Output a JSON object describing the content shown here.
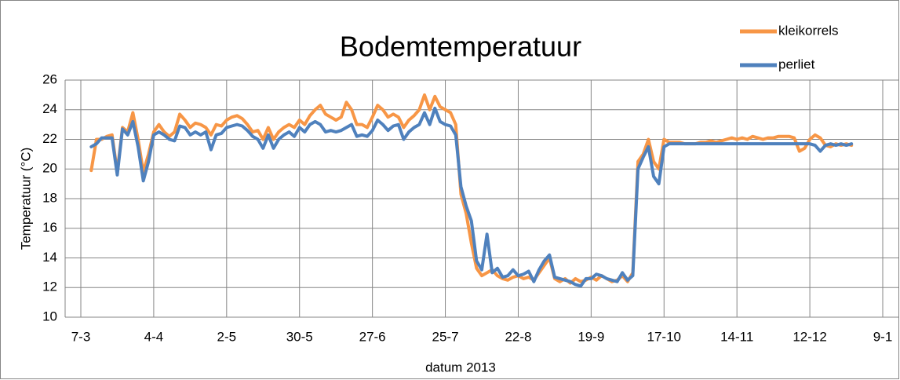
{
  "chart_data": {
    "type": "line",
    "title": "Bodemtemperatuur",
    "x_label": "datum 2013",
    "y_label": "Temperatuur (°C)",
    "x": [
      "7-3",
      "9-3",
      "11-3",
      "13-3",
      "15-3",
      "17-3",
      "19-3",
      "21-3",
      "23-3",
      "25-3",
      "27-3",
      "29-3",
      "31-3",
      "2-4",
      "4-4",
      "6-4",
      "8-4",
      "10-4",
      "12-4",
      "14-4",
      "16-4",
      "18-4",
      "20-4",
      "22-4",
      "24-4",
      "26-4",
      "28-4",
      "30-4",
      "2-5",
      "4-5",
      "6-5",
      "8-5",
      "10-5",
      "12-5",
      "14-5",
      "16-5",
      "18-5",
      "20-5",
      "22-5",
      "24-5",
      "26-5",
      "28-5",
      "30-5",
      "1-6",
      "3-6",
      "5-6",
      "7-6",
      "9-6",
      "11-6",
      "13-6",
      "15-6",
      "17-6",
      "19-6",
      "21-6",
      "23-6",
      "25-6",
      "27-6",
      "29-6",
      "1-7",
      "3-7",
      "5-7",
      "7-7",
      "9-7",
      "11-7",
      "13-7",
      "15-7",
      "17-7",
      "19-7",
      "21-7",
      "23-7",
      "25-7",
      "27-7",
      "29-7",
      "31-7",
      "2-8",
      "4-8",
      "6-8",
      "8-8",
      "10-8",
      "12-8",
      "14-8",
      "16-8",
      "18-8",
      "20-8",
      "22-8",
      "24-8",
      "26-8",
      "28-8",
      "30-8",
      "1-9",
      "3-9",
      "5-9",
      "7-9",
      "9-9",
      "11-9",
      "13-9",
      "15-9",
      "17-9",
      "19-9",
      "21-9",
      "23-9",
      "25-9",
      "27-9",
      "29-9",
      "1-10",
      "3-10",
      "5-10",
      "7-10",
      "9-10",
      "11-10",
      "13-10",
      "15-10",
      "17-10",
      "19-10",
      "21-10",
      "23-10",
      "25-10",
      "27-10",
      "29-10",
      "31-10",
      "2-11",
      "4-11",
      "6-11",
      "8-11",
      "10-11",
      "12-11",
      "14-11",
      "16-11",
      "18-11",
      "20-11",
      "22-11",
      "24-11",
      "26-11",
      "28-11",
      "30-11",
      "2-12",
      "4-12",
      "6-12",
      "8-12",
      "10-12",
      "12-12",
      "14-12",
      "16-12",
      "18-12",
      "20-12",
      "22-12",
      "24-12",
      "26-12",
      "28-12",
      "30-12",
      "1-1",
      "3-1",
      "5-1",
      "7-1",
      "9-1"
    ],
    "xticks": [
      "7-3",
      "4-4",
      "2-5",
      "30-5",
      "27-6",
      "25-7",
      "22-8",
      "19-9",
      "17-10",
      "14-11",
      "12-12",
      "9-1"
    ],
    "ylim": [
      10,
      26
    ],
    "yticks": [
      10,
      12,
      14,
      16,
      18,
      20,
      22,
      24,
      26
    ],
    "grid": true,
    "legend": "top-right",
    "series": [
      {
        "name": "kleikorrels",
        "color": "#f79646",
        "values": [
          null,
          null,
          19.9,
          22.0,
          22.0,
          22.2,
          22.3,
          19.8,
          22.8,
          22.5,
          23.8,
          22.0,
          19.8,
          21.0,
          22.5,
          23.0,
          22.5,
          22.2,
          22.5,
          23.7,
          23.3,
          22.8,
          23.1,
          23.0,
          22.8,
          22.3,
          23.0,
          22.9,
          23.3,
          23.5,
          23.6,
          23.4,
          23.0,
          22.5,
          22.6,
          22.0,
          22.8,
          22.0,
          22.5,
          22.8,
          23.0,
          22.8,
          23.3,
          23.0,
          23.6,
          24.0,
          24.3,
          23.7,
          23.5,
          23.3,
          23.5,
          24.5,
          24.0,
          23.0,
          23.0,
          22.8,
          23.5,
          24.3,
          24.0,
          23.5,
          23.7,
          23.5,
          22.8,
          23.3,
          23.6,
          24.0,
          25.0,
          24.0,
          24.9,
          24.2,
          24.0,
          23.8,
          23.0,
          18.3,
          17.0,
          15.0,
          13.3,
          12.8,
          13.0,
          13.2,
          12.8,
          12.6,
          12.5,
          12.7,
          12.8,
          12.6,
          12.7,
          12.5,
          13.0,
          13.5,
          14.0,
          12.6,
          12.4,
          12.6,
          12.3,
          12.6,
          12.4,
          12.5,
          12.7,
          12.5,
          12.8,
          12.6,
          12.4,
          12.5,
          12.8,
          12.4,
          13.0,
          20.5,
          21.0,
          22.0,
          20.5,
          20.0,
          22.0,
          21.8,
          21.8,
          21.8,
          21.7,
          21.7,
          21.7,
          21.8,
          21.8,
          21.9,
          21.8,
          21.9,
          22.0,
          22.1,
          22.0,
          22.1,
          22.0,
          22.2,
          22.1,
          22.0,
          22.1,
          22.1,
          22.2,
          22.2,
          22.2,
          22.1,
          21.2,
          21.4,
          22.0,
          22.3,
          22.1,
          21.6,
          21.5,
          21.7,
          21.6,
          21.7,
          21.6,
          null,
          null,
          null,
          null,
          null,
          null
        ]
      },
      {
        "name": "perliet",
        "color": "#4f81bd",
        "values": [
          null,
          null,
          21.5,
          21.7,
          22.1,
          22.1,
          22.1,
          19.6,
          22.7,
          22.3,
          23.2,
          21.5,
          19.2,
          20.5,
          22.3,
          22.5,
          22.3,
          22.0,
          21.9,
          22.9,
          22.8,
          22.3,
          22.5,
          22.3,
          22.5,
          21.3,
          22.3,
          22.4,
          22.8,
          22.9,
          23.0,
          22.9,
          22.6,
          22.2,
          22.0,
          21.4,
          22.3,
          21.4,
          22.0,
          22.3,
          22.5,
          22.2,
          22.8,
          22.5,
          23.0,
          23.2,
          23.0,
          22.5,
          22.6,
          22.5,
          22.6,
          22.8,
          23.0,
          22.2,
          22.3,
          22.2,
          22.6,
          23.3,
          23.0,
          22.6,
          22.9,
          23.0,
          22.0,
          22.5,
          22.8,
          23.0,
          23.8,
          23.0,
          24.1,
          23.2,
          23.0,
          22.9,
          22.3,
          18.8,
          17.5,
          16.5,
          13.8,
          13.2,
          15.6,
          13.0,
          13.3,
          12.7,
          12.8,
          13.2,
          12.8,
          12.9,
          13.1,
          12.4,
          13.2,
          13.8,
          14.2,
          12.7,
          12.6,
          12.5,
          12.4,
          12.2,
          12.1,
          12.6,
          12.6,
          12.9,
          12.8,
          12.6,
          12.5,
          12.4,
          13.0,
          12.5,
          12.8,
          20.0,
          20.8,
          21.5,
          19.5,
          19.0,
          21.5,
          21.7,
          21.7,
          21.7,
          21.7,
          21.7,
          21.7,
          21.7,
          21.7,
          21.7,
          21.7,
          21.7,
          21.7,
          21.7,
          21.7,
          21.7,
          21.7,
          21.7,
          21.7,
          21.7,
          21.7,
          21.7,
          21.7,
          21.7,
          21.7,
          21.7,
          21.7,
          21.7,
          21.7,
          21.6,
          21.2,
          21.6,
          21.7,
          21.6,
          21.7,
          21.6,
          21.7,
          null,
          null,
          null,
          null,
          null,
          null
        ]
      }
    ]
  }
}
